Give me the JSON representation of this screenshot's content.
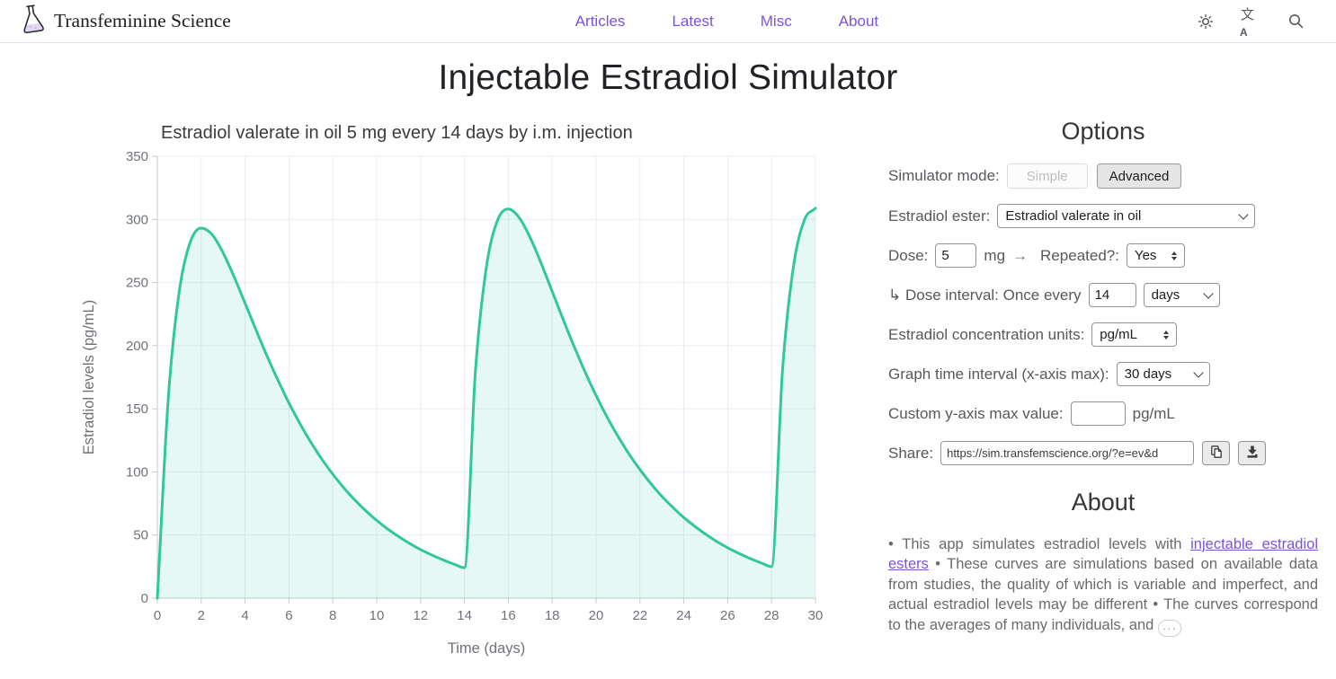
{
  "header": {
    "brand": "Transfeminine Science",
    "nav": [
      {
        "label": "Articles"
      },
      {
        "label": "Latest"
      },
      {
        "label": "Misc"
      },
      {
        "label": "About"
      }
    ]
  },
  "page_title": "Injectable Estradiol Simulator",
  "chart_data": {
    "type": "area",
    "title": "Estradiol valerate in oil 5 mg every 14 days by i.m. injection",
    "xlabel": "Time (days)",
    "ylabel": "Estradiol levels (pg/mL)",
    "xlim": [
      0,
      30
    ],
    "ylim": [
      0,
      350
    ],
    "x_ticks": [
      0,
      2,
      4,
      6,
      8,
      10,
      12,
      14,
      16,
      18,
      20,
      22,
      24,
      26,
      28,
      30
    ],
    "y_ticks": [
      0,
      50,
      100,
      150,
      200,
      250,
      300,
      350
    ],
    "grid": true,
    "legend": false,
    "line_color": "#31c79c",
    "fill_color": "rgba(49,199,156,0.12)",
    "series": [
      {
        "name": "Estradiol levels",
        "x": [
          0,
          0.5,
          1,
          1.5,
          2,
          2.5,
          3,
          3.5,
          4,
          4.5,
          5,
          5.5,
          6,
          6.5,
          7,
          7.5,
          8,
          8.5,
          9,
          9.5,
          10,
          10.5,
          11,
          11.5,
          12,
          12.5,
          13,
          13.5,
          14,
          14.5,
          15,
          15.5,
          16,
          16.5,
          17,
          17.5,
          18,
          18.5,
          19,
          19.5,
          20,
          20.5,
          21,
          21.5,
          22,
          22.5,
          23,
          23.5,
          24,
          24.5,
          25,
          25.5,
          26,
          26.5,
          27,
          27.5,
          28,
          28.5,
          29,
          29.5,
          30
        ],
        "y": [
          0,
          158.6,
          243.1,
          282.0,
          293.1,
          287.9,
          273.5,
          254.5,
          233.6,
          212.4,
          191.8,
          172.6,
          154.6,
          138.3,
          123.5,
          110.1,
          98.2,
          87.4,
          77.8,
          69.3,
          61.6,
          54.8,
          48.8,
          43.3,
          38.5,
          34.3,
          30.5,
          27.1,
          24.1,
          180.0,
          262.2,
          299.0,
          308.2,
          301.3,
          285.4,
          265.1,
          243.0,
          220.8,
          199.3,
          179.2,
          160.5,
          143.5,
          128.2,
          114.2,
          101.9,
          90.7,
          80.7,
          71.9,
          63.9,
          56.9,
          50.6,
          44.9,
          39.9,
          35.6,
          31.6,
          28.1,
          25.0,
          180.8,
          262.9,
          299.6,
          308.8
        ]
      }
    ]
  },
  "options": {
    "heading": "Options",
    "simulator_mode": {
      "label": "Simulator mode:",
      "simple_label": "Simple",
      "advanced_label": "Advanced",
      "selected": "Advanced"
    },
    "ester": {
      "label": "Estradiol ester:",
      "value": "Estradiol valerate in oil"
    },
    "dose": {
      "label": "Dose:",
      "value": "5",
      "unit": "mg",
      "arrow": "→",
      "repeated_label": "Repeated?:",
      "repeated_value": "Yes"
    },
    "dose_interval": {
      "label": "↳ Dose interval: Once every",
      "value": "14",
      "unit_value": "days"
    },
    "concentration_units": {
      "label": "Estradiol concentration units:",
      "value": "pg/mL"
    },
    "graph_time_interval": {
      "label": "Graph time interval (x-axis max):",
      "value": "30 days"
    },
    "custom_y_max": {
      "label": "Custom y-axis max value:",
      "value": "",
      "unit": "pg/mL"
    },
    "share": {
      "label": "Share:",
      "url": "https://sim.transfemscience.org/?e=ev&d"
    }
  },
  "about": {
    "heading": "About",
    "part1": "• This app simulates estradiol levels with ",
    "link_text": "injectable estradiol esters",
    "part2": " • These curves are simulations based on available data from studies, the quality of which is variable and imperfect, and actual estradiol levels may be different • The curves correspond to the averages of many individuals, and ",
    "more_label": "···"
  }
}
